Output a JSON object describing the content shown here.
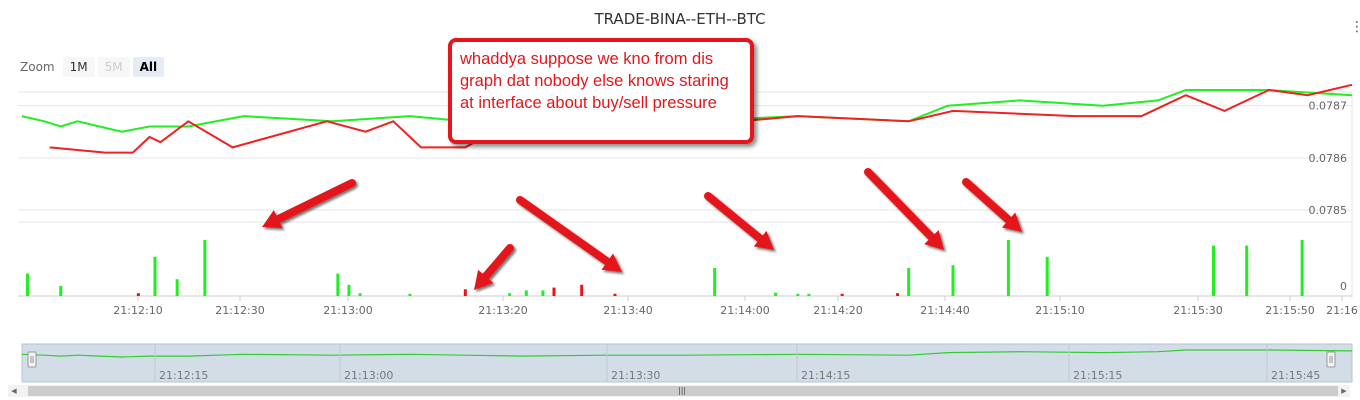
{
  "title": "TRADE-BINA--ETH--BTC",
  "menu_icon": "context-menu-icon",
  "zoom": {
    "label": "Zoom",
    "buttons": [
      {
        "label": "1M",
        "state": "normal"
      },
      {
        "label": "5M",
        "state": "disabled"
      },
      {
        "label": "All",
        "state": "active"
      }
    ]
  },
  "annotation": {
    "text": "whaddya suppose we kno from dis graph dat nobody else knows staring at interface about buy/sell pressure"
  },
  "colors": {
    "ask_line": "#22ee22",
    "bid_line": "#ee2222",
    "buy_volume": "#22ee22",
    "sell_volume": "#ee1111",
    "arrow": "#e4161b",
    "navigator_fill": "#d3dde8",
    "navigator_line": "#33cc33"
  },
  "chart_data": {
    "type": "line",
    "title": "TRADE-BINA--ETH--BTC",
    "x_range_seconds": [
      "21:12:00",
      "21:16:00"
    ],
    "price_axis": {
      "ticks": [
        0.0785,
        0.0786,
        0.0787
      ],
      "range": [
        0.0785,
        0.07873
      ]
    },
    "x_ticks": [
      "21:12:10",
      "21:12:30",
      "21:13:00",
      "21:13:20",
      "21:13:40",
      "21:14:00",
      "21:14:20",
      "21:14:40",
      "21:15:10",
      "21:15:30",
      "21:15:50",
      "21:16"
    ],
    "series": [
      {
        "name": "",
        "color": "green",
        "points": [
          [
            "21:12:00",
            0.07868
          ],
          [
            "21:12:04",
            0.07867
          ],
          [
            "21:12:07",
            0.07866
          ],
          [
            "21:12:10",
            0.07867
          ],
          [
            "21:12:14",
            0.07866
          ],
          [
            "21:12:18",
            0.07865
          ],
          [
            "21:12:23",
            0.07866
          ],
          [
            "21:12:30",
            0.07866
          ],
          [
            "21:12:40",
            0.07868
          ],
          [
            "21:12:56",
            0.07867
          ],
          [
            "21:13:10",
            0.07868
          ],
          [
            "21:13:20",
            0.07867
          ],
          [
            "21:13:30",
            0.07866
          ],
          [
            "21:13:45",
            0.07867
          ],
          [
            "21:14:00",
            0.07867
          ],
          [
            "21:14:20",
            0.07868
          ],
          [
            "21:14:40",
            0.07867
          ],
          [
            "21:14:47",
            0.0787
          ],
          [
            "21:15:00",
            0.07871
          ],
          [
            "21:15:15",
            0.0787
          ],
          [
            "21:15:25",
            0.07871
          ],
          [
            "21:15:30",
            0.07873
          ],
          [
            "21:15:45",
            0.07873
          ],
          [
            "21:16:00",
            0.07872
          ]
        ]
      },
      {
        "name": "",
        "color": "red",
        "points": [
          [
            "21:12:05",
            0.07862
          ],
          [
            "21:12:15",
            0.07861
          ],
          [
            "21:12:20",
            0.07861
          ],
          [
            "21:12:23",
            0.07864
          ],
          [
            "21:12:25",
            0.07863
          ],
          [
            "21:12:30",
            0.07867
          ],
          [
            "21:12:38",
            0.07862
          ],
          [
            "21:12:55",
            0.07867
          ],
          [
            "21:13:02",
            0.07865
          ],
          [
            "21:13:07",
            0.07867
          ],
          [
            "21:13:12",
            0.07862
          ],
          [
            "21:13:20",
            0.07862
          ],
          [
            "21:13:25",
            0.07865
          ],
          [
            "21:13:28",
            0.07863
          ],
          [
            "21:14:20",
            0.07868
          ],
          [
            "21:14:40",
            0.07867
          ],
          [
            "21:14:48",
            0.07869
          ],
          [
            "21:15:10",
            0.07868
          ],
          [
            "21:15:22",
            0.07868
          ],
          [
            "21:15:30",
            0.07872
          ],
          [
            "21:15:37",
            0.07869
          ],
          [
            "21:15:45",
            0.07873
          ],
          [
            "21:15:52",
            0.07872
          ],
          [
            "21:16:00",
            0.07874
          ]
        ]
      }
    ],
    "volume": {
      "y_tick": "0",
      "buy_bars": [
        [
          "21:12:01",
          0.4
        ],
        [
          "21:12:07",
          0.18
        ],
        [
          "21:12:24",
          0.7
        ],
        [
          "21:12:28",
          0.3
        ],
        [
          "21:12:33",
          1.0
        ],
        [
          "21:12:57",
          0.4
        ],
        [
          "21:12:59",
          0.2
        ],
        [
          "21:13:01",
          0.05
        ],
        [
          "21:13:10",
          0.04
        ],
        [
          "21:13:28",
          0.05
        ],
        [
          "21:13:31",
          0.1
        ],
        [
          "21:13:34",
          0.1
        ],
        [
          "21:14:05",
          0.5
        ],
        [
          "21:14:16",
          0.06
        ],
        [
          "21:14:20",
          0.04
        ],
        [
          "21:14:22",
          0.04
        ],
        [
          "21:14:40",
          0.5
        ],
        [
          "21:14:48",
          0.55
        ],
        [
          "21:14:58",
          1.0
        ],
        [
          "21:15:05",
          0.7
        ],
        [
          "21:15:35",
          0.9
        ],
        [
          "21:15:41",
          0.9
        ],
        [
          "21:15:51",
          1.0
        ]
      ],
      "sell_bars": [
        [
          "21:12:21",
          0.05
        ],
        [
          "21:13:20",
          0.12
        ],
        [
          "21:13:36",
          0.15
        ],
        [
          "21:13:41",
          0.2
        ],
        [
          "21:13:47",
          0.04
        ],
        [
          "21:14:28",
          0.04
        ],
        [
          "21:14:38",
          0.05
        ]
      ]
    },
    "navigator": {
      "ticks": [
        "21:12:15",
        "21:13:00",
        "21:13:30",
        "21:14:15",
        "21:15:15",
        "21:15:45"
      ]
    }
  }
}
